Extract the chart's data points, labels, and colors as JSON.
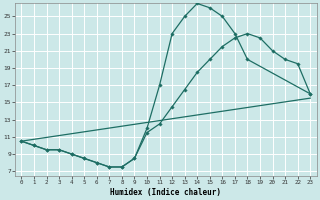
{
  "xlabel": "Humidex (Indice chaleur)",
  "bg_color": "#cce8e8",
  "grid_color": "#ffffff",
  "line_color": "#1e6e64",
  "xlim": [
    -0.5,
    23.5
  ],
  "ylim": [
    6.5,
    26.5
  ],
  "xticks": [
    0,
    1,
    2,
    3,
    4,
    5,
    6,
    7,
    8,
    9,
    10,
    11,
    12,
    13,
    14,
    15,
    16,
    17,
    18,
    19,
    20,
    21,
    22,
    23
  ],
  "yticks": [
    7,
    9,
    11,
    13,
    15,
    17,
    19,
    21,
    23,
    25
  ],
  "curve1_x": [
    0,
    1,
    2,
    3,
    4,
    5,
    6,
    7,
    8,
    9,
    10,
    11,
    12,
    13,
    14,
    15,
    16,
    17,
    18,
    23
  ],
  "curve1_y": [
    10.5,
    10.0,
    9.5,
    9.5,
    9.0,
    8.5,
    8.0,
    7.5,
    7.5,
    8.5,
    12.0,
    17.0,
    23.0,
    25.0,
    26.5,
    26.0,
    25.0,
    23.0,
    20.0,
    16.0
  ],
  "curve2_x": [
    0,
    1,
    2,
    3,
    4,
    5,
    6,
    7,
    8,
    9,
    10,
    11,
    12,
    13,
    14,
    15,
    16,
    17,
    18,
    19,
    20,
    21,
    22,
    23
  ],
  "curve2_y": [
    10.5,
    10.0,
    9.5,
    9.5,
    9.0,
    8.5,
    8.0,
    7.5,
    7.5,
    8.5,
    11.5,
    12.5,
    14.5,
    16.5,
    18.5,
    20.0,
    21.5,
    22.5,
    23.0,
    22.5,
    21.0,
    20.0,
    19.5,
    16.0
  ],
  "curve3_x": [
    0,
    23
  ],
  "curve3_y": [
    10.5,
    15.5
  ]
}
